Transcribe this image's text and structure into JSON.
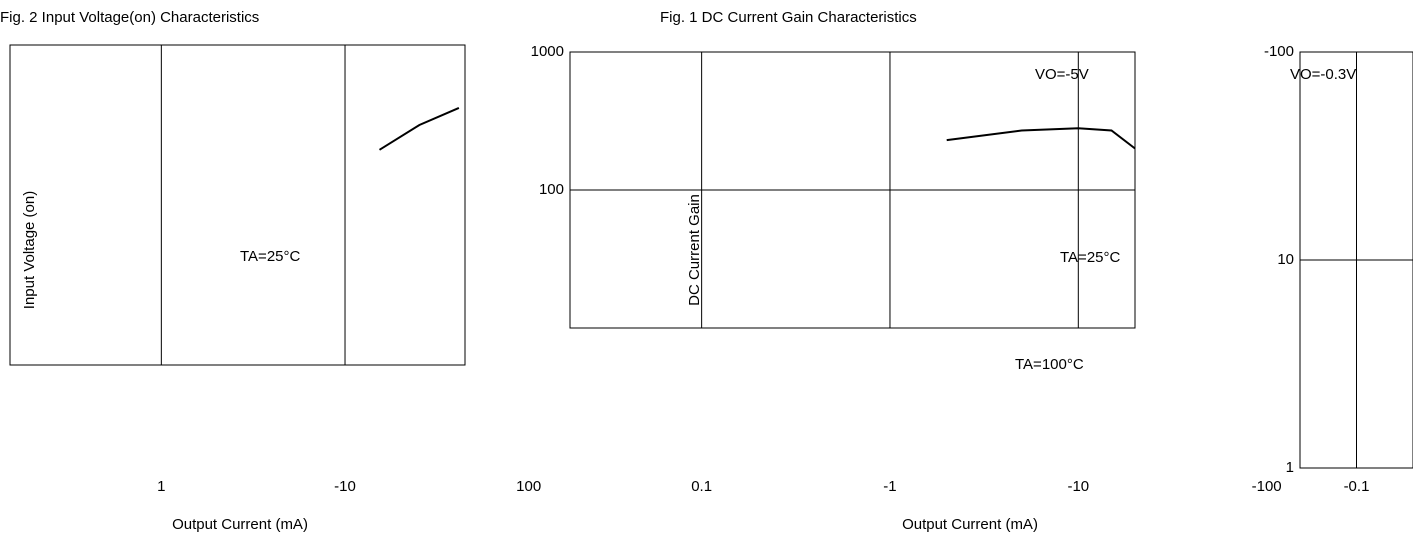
{
  "chart_data": [
    {
      "type": "line",
      "title": "Fig. 2 Input Voltage(on) Characteristics",
      "y_label": "Input Voltage (on)",
      "x_label": "Output Current (mA)",
      "log_x": true,
      "log_y": true,
      "xlim": [
        0.15,
        45
      ],
      "ylim": [
        0.1,
        100
      ],
      "xticks": [
        1,
        {
          "value": 10,
          "label": "-10"
        },
        100
      ],
      "annotations": [
        "TA=25°C"
      ],
      "x": [
        15.4,
        25.4,
        41.7
      ],
      "series": [
        {
          "name": "TA=25°C",
          "color": "#000000",
          "values": [
            10.4,
            17.8,
            25.7
          ]
        }
      ]
    },
    {
      "type": "line",
      "title": "Fig. 1 DC Current Gain Characteristics",
      "y_label": "DC Current Gain",
      "x_label": "Output Current (mA)",
      "log_x": true,
      "log_y": true,
      "xlim": [
        0.02,
        20
      ],
      "ylim": [
        10,
        1000
      ],
      "xticks": [
        0.1,
        {
          "value": 1,
          "label": "-1"
        },
        {
          "value": 10,
          "label": "-10"
        },
        {
          "value": 100,
          "label": "-100"
        }
      ],
      "yticks": [
        1000,
        100
      ],
      "annotations": [
        "TA=25°C",
        "TA=100°C"
      ],
      "x": [
        2,
        5,
        10,
        15,
        20
      ],
      "series": [
        {
          "name": "VO=-5V",
          "color": "#000000",
          "values": [
            230,
            270,
            280,
            270,
            200
          ]
        }
      ]
    },
    {
      "type": "line",
      "log_x": true,
      "log_y": true,
      "xlim": [
        0.05,
        0.2
      ],
      "ylim": [
        1,
        100
      ],
      "xticks": [
        {
          "value": 0.1,
          "label": "-0.1"
        }
      ],
      "yticks": [
        {
          "value": 100,
          "label": "-100"
        },
        10,
        1
      ],
      "annotations": [
        "VO=-0.3V"
      ],
      "x": [],
      "series": []
    }
  ]
}
